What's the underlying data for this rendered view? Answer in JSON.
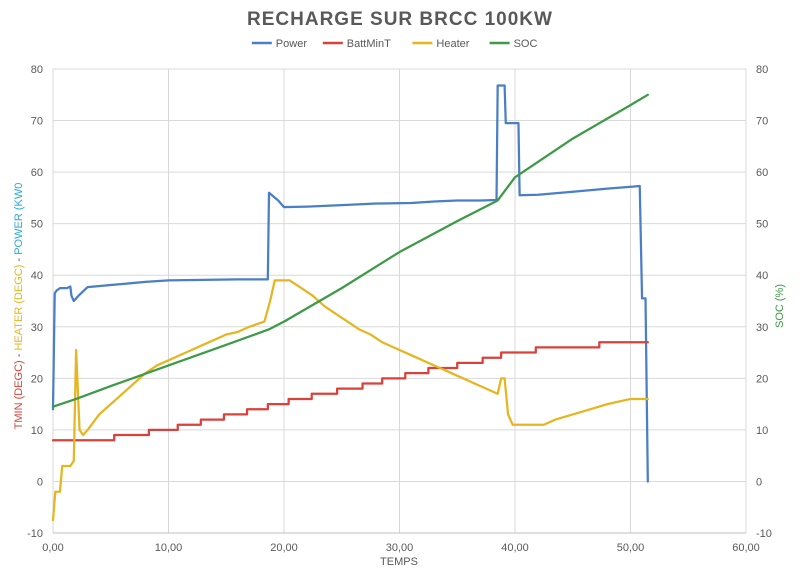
{
  "chart_data": {
    "type": "line",
    "title": "RECHARGE SUR BRCC 100KW",
    "xlabel": "TEMPS",
    "ylabel_left_parts": [
      {
        "text": "TMIN (DEGC)",
        "color": "#d9413a"
      },
      {
        "text": " - ",
        "color": "#595959"
      },
      {
        "text": "HEATER (DEGC)",
        "color": "#e6b520"
      },
      {
        "text": " - ",
        "color": "#595959"
      },
      {
        "text": "POWER (KW0",
        "color": "#2ea7d8"
      }
    ],
    "ylabel_right": "SOC (%)",
    "ylabel_right_color": "#3d9a47",
    "xlim": [
      0,
      60
    ],
    "ylim": [
      -10,
      80
    ],
    "y2lim": [
      -10,
      80
    ],
    "x_ticks": [
      "0,00",
      "10,00",
      "20,00",
      "30,00",
      "40,00",
      "50,00",
      "60,00"
    ],
    "y_ticks": [
      "-10",
      "0",
      "10",
      "20",
      "30",
      "40",
      "50",
      "60",
      "70",
      "80"
    ],
    "y2_ticks": [
      "-10",
      "0",
      "10",
      "20",
      "30",
      "40",
      "50",
      "60",
      "70",
      "80"
    ],
    "grid": true,
    "legend_position": "top",
    "series": [
      {
        "name": "Power",
        "color": "#4a7ec7",
        "axis": "left",
        "step": false,
        "points": [
          [
            0,
            14
          ],
          [
            0.15,
            36.5
          ],
          [
            0.3,
            37
          ],
          [
            0.6,
            37.5
          ],
          [
            1.2,
            37.5
          ],
          [
            1.5,
            37.8
          ],
          [
            1.6,
            36
          ],
          [
            1.8,
            35
          ],
          [
            2.2,
            36
          ],
          [
            3,
            37.7
          ],
          [
            5,
            38.1
          ],
          [
            8,
            38.7
          ],
          [
            10,
            39
          ],
          [
            13,
            39.1
          ],
          [
            16,
            39.2
          ],
          [
            18.6,
            39.2
          ],
          [
            18.7,
            56
          ],
          [
            19.5,
            54.5
          ],
          [
            20,
            53.2
          ],
          [
            22,
            53.3
          ],
          [
            25,
            53.6
          ],
          [
            28,
            53.9
          ],
          [
            31,
            54
          ],
          [
            33,
            54.3
          ],
          [
            35,
            54.5
          ],
          [
            37,
            54.5
          ],
          [
            38.4,
            54.6
          ],
          [
            38.5,
            76.8
          ],
          [
            39.1,
            76.8
          ],
          [
            39.2,
            69.5
          ],
          [
            40.3,
            69.5
          ],
          [
            40.4,
            55.5
          ],
          [
            42,
            55.6
          ],
          [
            45,
            56.2
          ],
          [
            48,
            56.8
          ],
          [
            50.8,
            57.3
          ],
          [
            51,
            35.5
          ],
          [
            51.3,
            35.5
          ],
          [
            51.5,
            0
          ]
        ]
      },
      {
        "name": "BattMinT",
        "color": "#d9413a",
        "axis": "left",
        "step": true,
        "points": [
          [
            0,
            8
          ],
          [
            5.3,
            9
          ],
          [
            8.3,
            10
          ],
          [
            10.8,
            11
          ],
          [
            12.8,
            12
          ],
          [
            14.8,
            13
          ],
          [
            16.8,
            14
          ],
          [
            18.6,
            15
          ],
          [
            20.4,
            16
          ],
          [
            22.4,
            17
          ],
          [
            24.6,
            18
          ],
          [
            26.8,
            19
          ],
          [
            28.5,
            20
          ],
          [
            30.5,
            21
          ],
          [
            32.5,
            22
          ],
          [
            35,
            23
          ],
          [
            37.2,
            24
          ],
          [
            38.8,
            25
          ],
          [
            41.8,
            26
          ],
          [
            47.3,
            27
          ],
          [
            51.5,
            27
          ]
        ]
      },
      {
        "name": "Heater",
        "color": "#e6b520",
        "axis": "left",
        "step": false,
        "points": [
          [
            0,
            -7.5
          ],
          [
            0.2,
            -2
          ],
          [
            0.6,
            -2
          ],
          [
            0.8,
            3
          ],
          [
            1.5,
            3
          ],
          [
            1.8,
            4
          ],
          [
            2.0,
            25.5
          ],
          [
            2.3,
            10
          ],
          [
            2.6,
            9
          ],
          [
            3,
            10
          ],
          [
            4,
            13
          ],
          [
            5,
            15
          ],
          [
            6,
            17
          ],
          [
            7,
            19
          ],
          [
            8,
            21
          ],
          [
            9,
            22.5
          ],
          [
            10,
            23.5
          ],
          [
            11,
            24.5
          ],
          [
            12,
            25.5
          ],
          [
            13,
            26.5
          ],
          [
            14,
            27.5
          ],
          [
            15,
            28.5
          ],
          [
            16,
            29
          ],
          [
            17,
            30
          ],
          [
            18.3,
            31
          ],
          [
            18.8,
            35
          ],
          [
            19.2,
            39
          ],
          [
            20.5,
            39
          ],
          [
            21.5,
            37.5
          ],
          [
            22.5,
            36
          ],
          [
            23.5,
            34
          ],
          [
            24.5,
            32.5
          ],
          [
            25.5,
            31
          ],
          [
            26.5,
            29.5
          ],
          [
            27.5,
            28.5
          ],
          [
            28.5,
            27
          ],
          [
            29.5,
            26
          ],
          [
            30.5,
            25
          ],
          [
            31.5,
            24
          ],
          [
            32.5,
            23
          ],
          [
            33.5,
            22
          ],
          [
            34.5,
            21
          ],
          [
            35.5,
            20
          ],
          [
            36.5,
            19
          ],
          [
            37.5,
            18
          ],
          [
            38.5,
            17
          ],
          [
            38.8,
            20
          ],
          [
            39.1,
            20
          ],
          [
            39.4,
            13
          ],
          [
            39.8,
            11
          ],
          [
            42.5,
            11
          ],
          [
            43.5,
            12
          ],
          [
            45,
            13
          ],
          [
            46.5,
            14
          ],
          [
            48,
            15
          ],
          [
            50,
            16
          ],
          [
            51.5,
            16
          ]
        ]
      },
      {
        "name": "SOC",
        "color": "#3d9a47",
        "axis": "right",
        "step": false,
        "points": [
          [
            0,
            14.5
          ],
          [
            2,
            16
          ],
          [
            5,
            18.5
          ],
          [
            10,
            22.5
          ],
          [
            15,
            26.5
          ],
          [
            18.7,
            29.5
          ],
          [
            20,
            31
          ],
          [
            25,
            37.5
          ],
          [
            30,
            44.5
          ],
          [
            35,
            50.5
          ],
          [
            38.5,
            54.5
          ],
          [
            40,
            59
          ],
          [
            45,
            66.5
          ],
          [
            50,
            73
          ],
          [
            51.5,
            75
          ]
        ]
      }
    ]
  }
}
